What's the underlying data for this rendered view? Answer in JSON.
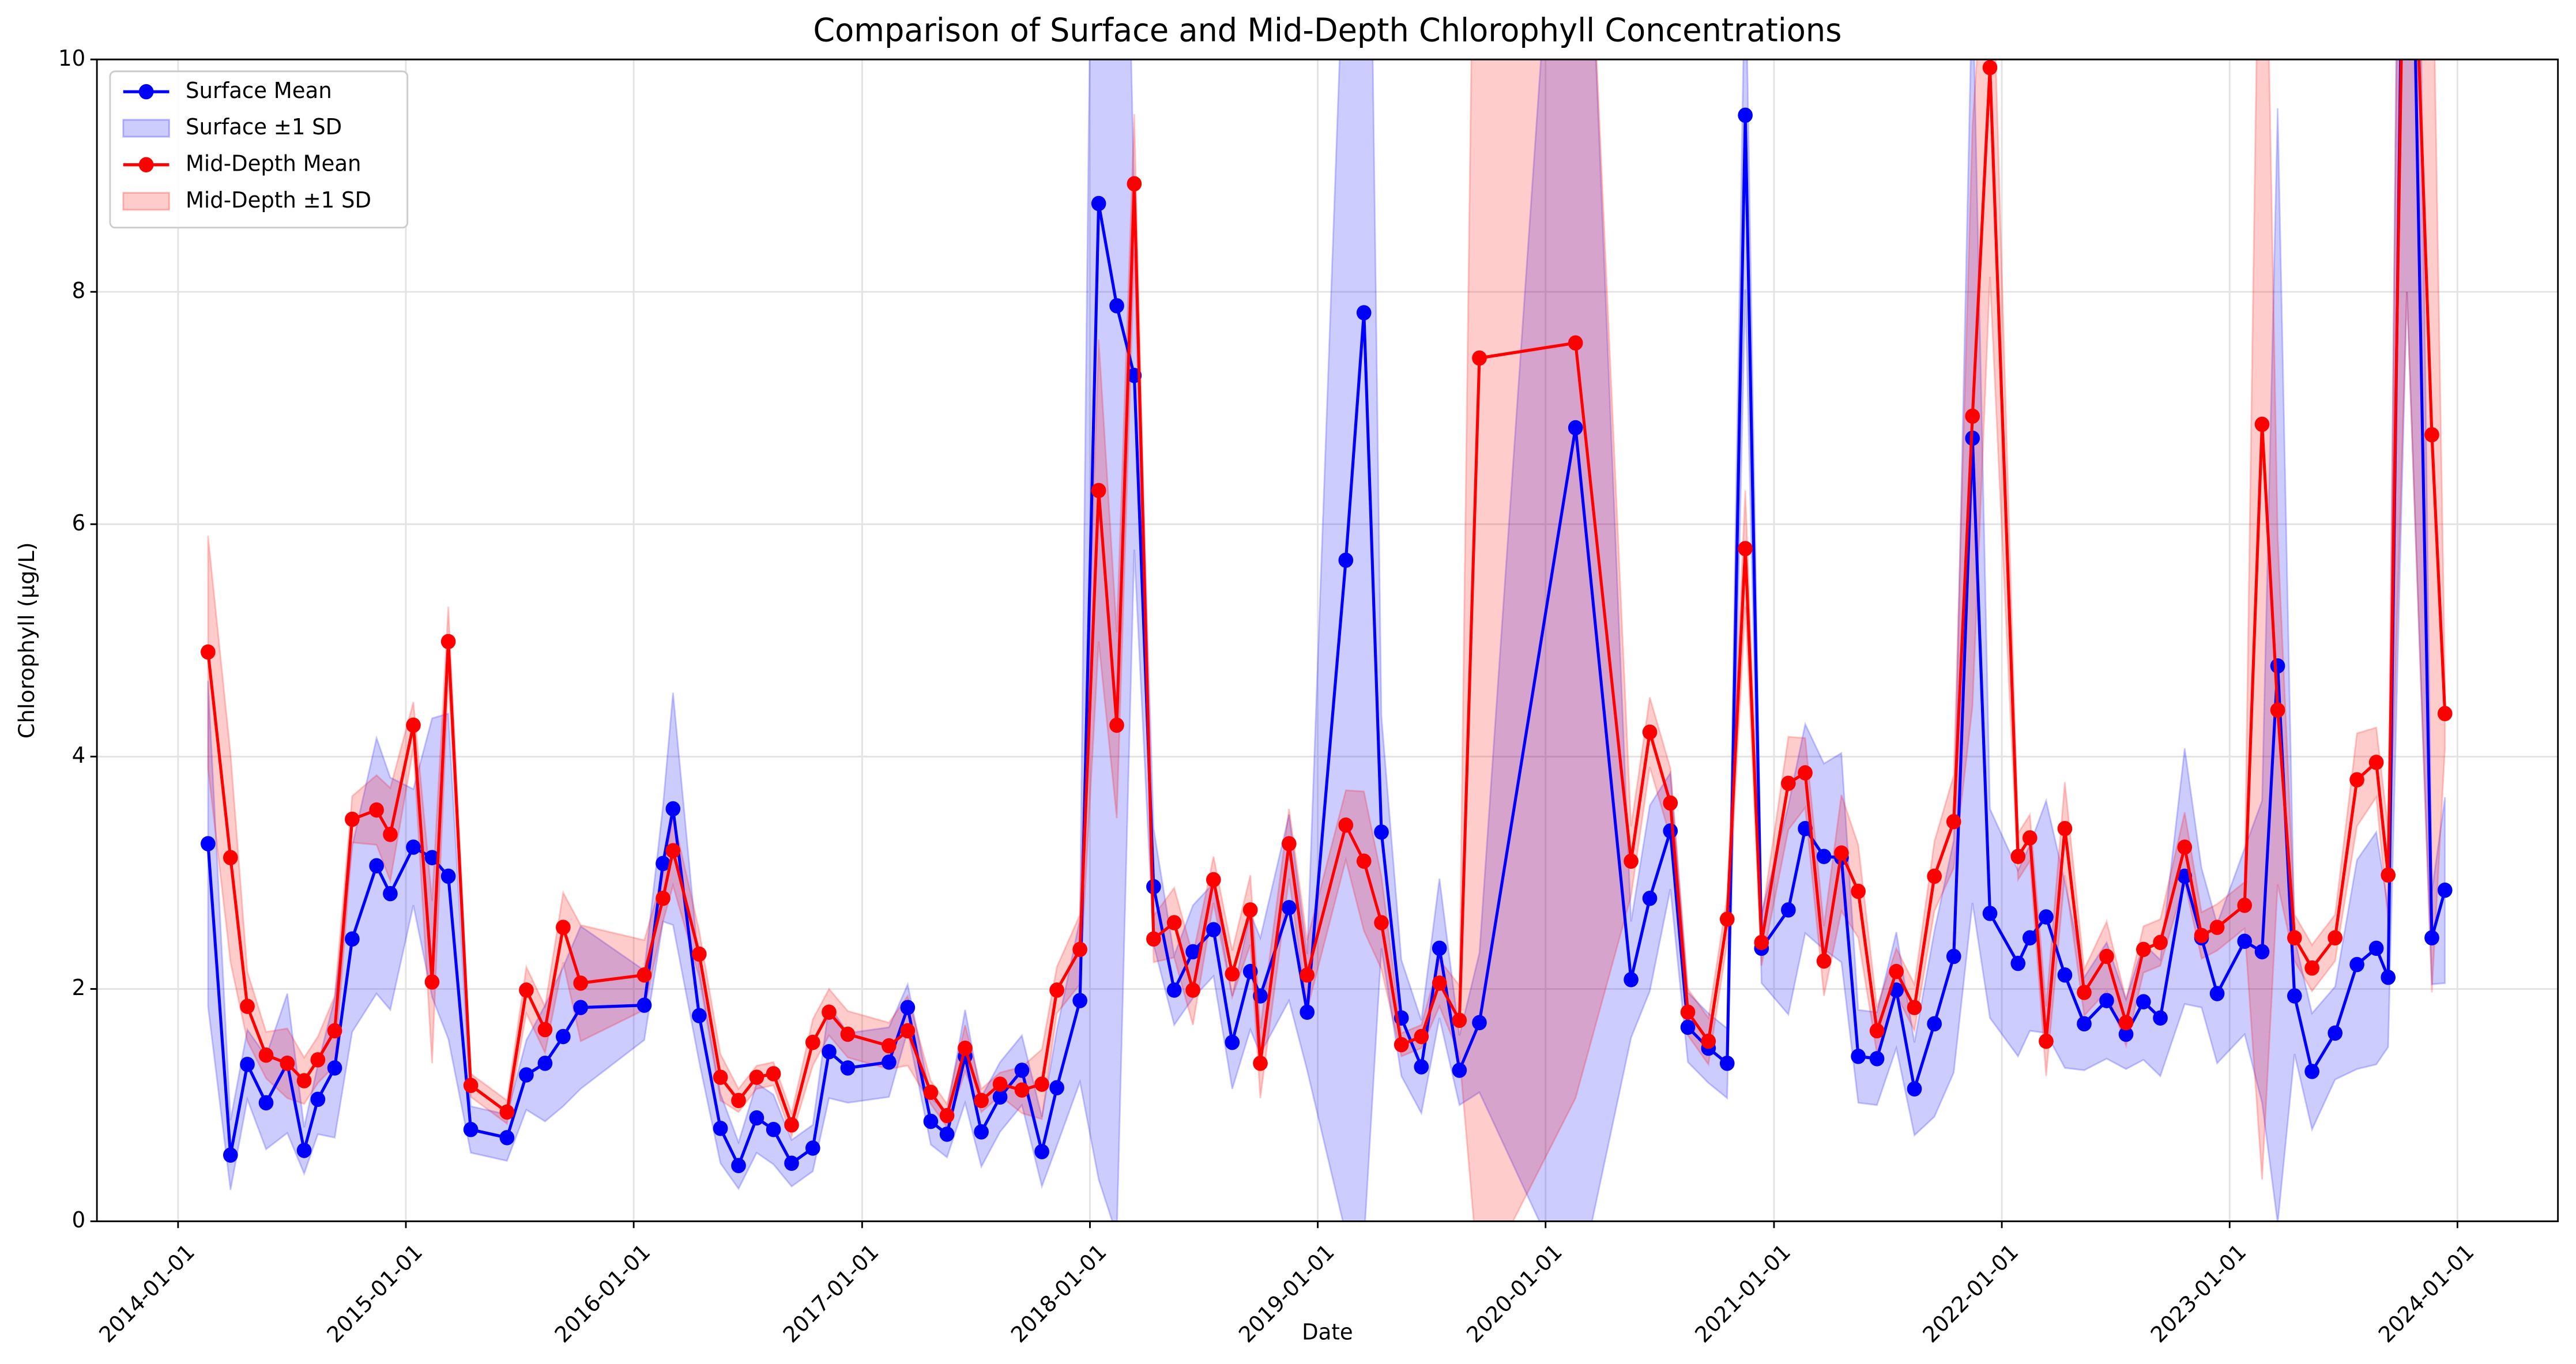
{
  "chart_data": {
    "type": "line",
    "title": "Comparison of Surface and Mid-Depth Chlorophyll Concentrations",
    "x_label": "Date",
    "y_label": "Chlorophyll (μg/L)",
    "x": [
      "2014-02-18",
      "2014-03-26",
      "2014-04-22",
      "2014-05-22",
      "2014-06-25",
      "2014-07-22",
      "2014-08-13",
      "2014-09-09",
      "2014-10-07",
      "2014-11-15",
      "2014-12-07",
      "2015-01-13",
      "2015-02-12",
      "2015-03-10",
      "2015-04-15",
      "2015-06-12",
      "2015-07-13",
      "2015-08-12",
      "2015-09-10",
      "2015-10-08",
      "2016-01-18",
      "2016-02-17",
      "2016-03-04",
      "2016-04-15",
      "2016-05-19",
      "2016-06-17",
      "2016-07-16",
      "2016-08-12",
      "2016-09-10",
      "2016-10-14",
      "2016-11-09",
      "2016-12-09",
      "2017-02-13",
      "2017-03-15",
      "2017-04-21",
      "2017-05-17",
      "2017-06-15",
      "2017-07-11",
      "2017-08-10",
      "2017-09-14",
      "2017-10-16",
      "2017-11-09",
      "2017-12-16",
      "2018-01-15",
      "2018-02-13",
      "2018-03-13",
      "2018-04-13",
      "2018-05-16",
      "2018-06-15",
      "2018-07-18",
      "2018-08-17",
      "2018-09-15",
      "2018-10-01",
      "2018-11-16",
      "2018-12-15",
      "2019-02-15",
      "2019-03-16",
      "2019-04-13",
      "2019-05-15",
      "2019-06-16",
      "2019-07-15",
      "2019-08-16",
      "2019-09-17",
      "2020-02-18",
      "2020-05-17",
      "2020-06-16",
      "2020-07-19",
      "2020-08-16",
      "2020-09-18",
      "2020-10-18",
      "2020-11-16",
      "2020-12-12",
      "2021-01-24",
      "2021-02-20",
      "2021-03-22",
      "2021-04-19",
      "2021-05-16",
      "2021-06-15",
      "2021-07-16",
      "2021-08-14",
      "2021-09-15",
      "2021-10-16",
      "2021-11-15",
      "2021-12-13",
      "2022-01-27",
      "2022-02-15",
      "2022-03-13",
      "2022-04-12",
      "2022-05-13",
      "2022-06-18",
      "2022-07-19",
      "2022-08-16",
      "2022-09-12",
      "2022-10-21",
      "2022-11-17",
      "2022-12-12",
      "2023-01-25",
      "2023-02-22",
      "2023-03-19",
      "2023-04-15",
      "2023-05-13",
      "2023-06-19",
      "2023-07-24",
      "2023-08-24",
      "2023-09-12",
      "2023-10-12",
      "2023-11-21",
      "2023-12-12"
    ],
    "series": [
      {
        "name": "Surface Mean",
        "color": "#0000ff",
        "values": [
          3.25,
          0.57,
          1.35,
          1.02,
          1.36,
          0.61,
          1.05,
          1.32,
          2.43,
          3.06,
          2.82,
          3.22,
          3.13,
          2.97,
          0.79,
          0.72,
          1.26,
          1.36,
          1.59,
          1.84,
          1.86,
          3.08,
          3.55,
          1.77,
          0.8,
          0.48,
          0.89,
          0.79,
          0.5,
          0.63,
          1.46,
          1.32,
          1.37,
          1.84,
          0.86,
          0.75,
          1.42,
          0.77,
          1.07,
          1.3,
          0.6,
          1.15,
          1.9,
          8.76,
          7.88,
          7.28,
          2.88,
          1.99,
          2.32,
          2.51,
          1.54,
          2.15,
          1.94,
          2.7,
          1.8,
          5.69,
          7.82,
          3.35,
          1.75,
          1.33,
          2.35,
          1.3,
          1.71,
          6.83,
          2.08,
          2.78,
          3.36,
          1.67,
          1.49,
          1.36,
          9.52,
          2.35,
          2.68,
          3.38,
          3.14,
          3.13,
          1.42,
          1.4,
          1.99,
          1.14,
          1.7,
          2.28,
          6.74,
          2.65,
          2.22,
          2.44,
          2.62,
          2.12,
          1.7,
          1.9,
          1.61,
          1.89,
          1.75,
          2.97,
          2.44,
          1.96,
          2.41,
          2.32,
          4.78,
          1.94,
          1.29,
          1.62,
          2.21,
          2.35,
          2.1,
          14,
          2.44,
          2.85
        ],
        "band": {
          "name": "Surface ±1 SD",
          "color": "#0000ff",
          "sd": [
            1.4,
            0.3,
            0.3,
            0.4,
            0.6,
            0.2,
            0.3,
            0.6,
            0.8,
            1.1,
            1.0,
            0.5,
            1.2,
            1.4,
            0.2,
            0.2,
            0.3,
            0.5,
            0.6,
            0.7,
            0.3,
            0.5,
            1.0,
            0.4,
            0.3,
            0.2,
            0.3,
            0.3,
            0.2,
            0.2,
            0.4,
            0.3,
            0.3,
            0.2,
            0.2,
            0.2,
            0.4,
            0.3,
            0.3,
            0.3,
            0.3,
            0.5,
            0.7,
            8.4,
            8.0,
            1.5,
            0.5,
            0.3,
            0.4,
            0.4,
            0.4,
            0.5,
            0.5,
            0.8,
            0.5,
            5.8,
            8.0,
            1.0,
            0.5,
            0.4,
            0.6,
            0.3,
            0.6,
            7.5,
            0.5,
            0.8,
            0.5,
            0.3,
            0.3,
            0.3,
            1.5,
            0.3,
            0.9,
            0.9,
            0.8,
            0.9,
            0.4,
            0.4,
            0.5,
            0.4,
            0.8,
            1.0,
            4.0,
            0.9,
            0.8,
            0.8,
            1.0,
            0.8,
            0.4,
            0.5,
            0.3,
            0.5,
            0.5,
            1.1,
            0.6,
            0.6,
            0.8,
            1.3,
            4.8,
            0.5,
            0.5,
            0.4,
            0.9,
            1.0,
            0.6,
            6.0,
            0.4,
            0.8
          ]
        }
      },
      {
        "name": "Mid-Depth Mean",
        "color": "#ff0000",
        "values": [
          4.9,
          3.13,
          1.85,
          1.43,
          1.36,
          1.21,
          1.39,
          1.64,
          3.46,
          3.54,
          3.33,
          4.27,
          2.06,
          4.99,
          1.17,
          0.94,
          1.99,
          1.65,
          2.53,
          2.05,
          2.12,
          2.78,
          3.19,
          2.3,
          1.24,
          1.04,
          1.24,
          1.27,
          0.83,
          1.54,
          1.8,
          1.61,
          1.51,
          1.64,
          1.11,
          0.91,
          1.49,
          1.04,
          1.18,
          1.13,
          1.18,
          1.99,
          2.34,
          6.29,
          4.27,
          8.93,
          2.43,
          2.57,
          1.99,
          2.94,
          2.13,
          2.68,
          1.36,
          3.25,
          2.12,
          3.41,
          3.1,
          2.57,
          1.52,
          1.59,
          2.05,
          1.73,
          7.43,
          7.56,
          3.1,
          4.21,
          3.6,
          1.8,
          1.55,
          2.6,
          5.79,
          2.4,
          3.77,
          3.86,
          2.24,
          3.17,
          2.84,
          1.64,
          2.15,
          1.84,
          2.97,
          3.44,
          6.93,
          9.93,
          3.14,
          3.3,
          1.55,
          3.38,
          1.97,
          2.28,
          1.71,
          2.34,
          2.4,
          3.22,
          2.46,
          2.53,
          2.72,
          6.86,
          4.4,
          2.44,
          2.18,
          2.44,
          3.8,
          3.95,
          2.98,
          13,
          6.77,
          4.37
        ],
        "band": {
          "name": "Mid-Depth ±1 SD",
          "color": "#ff0000",
          "sd": [
            1.0,
            0.9,
            0.3,
            0.2,
            0.3,
            0.2,
            0.2,
            0.3,
            0.2,
            0.3,
            0.4,
            0.2,
            0.7,
            0.3,
            0.1,
            0.1,
            0.2,
            0.2,
            0.3,
            0.5,
            0.3,
            0.2,
            0.3,
            0.2,
            0.2,
            0.1,
            0.1,
            0.1,
            0.1,
            0.2,
            0.2,
            0.2,
            0.2,
            0.3,
            0.1,
            0.1,
            0.2,
            0.1,
            0.1,
            0.2,
            0.3,
            0.2,
            0.3,
            1.3,
            0.8,
            0.6,
            0.2,
            0.3,
            0.3,
            0.2,
            0.2,
            0.3,
            0.3,
            0.3,
            0.3,
            0.3,
            0.6,
            0.4,
            0.1,
            0.1,
            0.2,
            0.3,
            8.0,
            6.5,
            0.3,
            0.3,
            0.3,
            0.2,
            0.2,
            0.2,
            0.5,
            0.2,
            0.4,
            0.3,
            0.3,
            0.5,
            0.4,
            0.2,
            0.2,
            0.2,
            0.3,
            0.4,
            2.5,
            1.8,
            0.2,
            0.2,
            0.3,
            0.4,
            0.2,
            0.3,
            0.2,
            0.2,
            0.2,
            0.3,
            0.2,
            0.2,
            0.2,
            6.5,
            1.5,
            0.2,
            0.2,
            0.2,
            0.4,
            0.3,
            0.4,
            5.0,
            4.8,
            0.3
          ]
        }
      }
    ],
    "xlim": [
      "2013-08-24",
      "2024-06-10"
    ],
    "xticks": [
      "2014-01-01",
      "2015-01-01",
      "2016-01-01",
      "2017-01-01",
      "2018-01-01",
      "2019-01-01",
      "2020-01-01",
      "2021-01-01",
      "2022-01-01",
      "2023-01-01",
      "2024-01-01"
    ],
    "ylim": [
      0,
      10
    ],
    "yticks": [
      0,
      2,
      4,
      6,
      8,
      10
    ],
    "grid": true,
    "legend": "upper left"
  }
}
